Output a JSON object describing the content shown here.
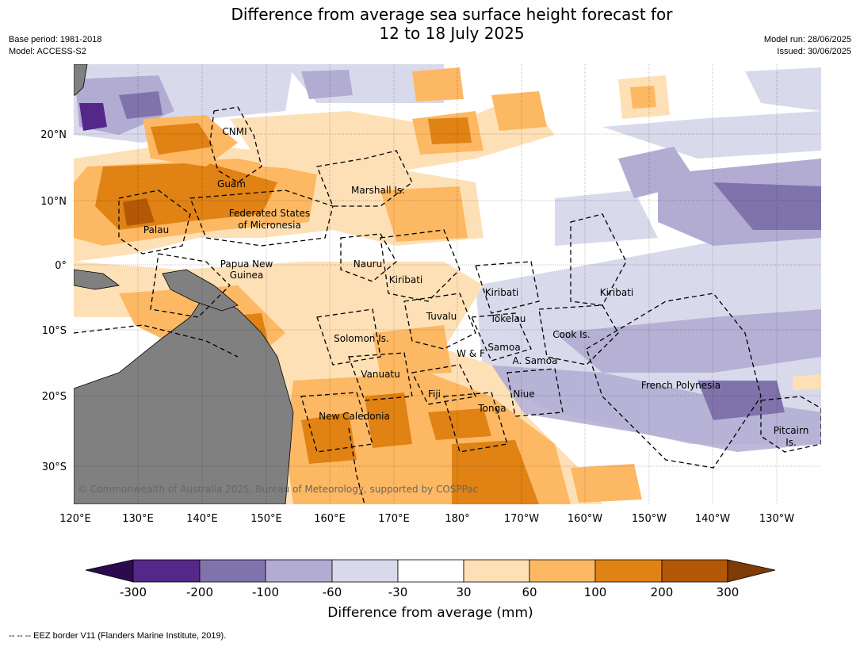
{
  "title_line1": "Difference from average sea surface height forecast for",
  "title_line2": "12 to 18 July 2025",
  "base_period": "Base period: 1981-2018",
  "model": "Model: ACCESS-S2",
  "model_run": "Model run: 28/06/2025",
  "issued": "Issued: 30/06/2025",
  "copyright": "© Commonwealth of Australia 2025, Bureau of Meteorology, supported by COSPPac",
  "lon_ticks": [
    "120°E",
    "130°E",
    "140°E",
    "150°E",
    "160°E",
    "170°E",
    "180°",
    "170°W",
    "160°W",
    "150°W",
    "140°W",
    "130°W"
  ],
  "lat_ticks": [
    "20°N",
    "10°N",
    "0°",
    "10°S",
    "20°S",
    "30°S"
  ],
  "places": [
    {
      "id": "cnmi",
      "text": "CNMI"
    },
    {
      "id": "guam",
      "text": "Guam"
    },
    {
      "id": "marshall",
      "text": "Marshall Is."
    },
    {
      "id": "fsm1",
      "text": "Federated States"
    },
    {
      "id": "fsm2",
      "text": "of Micronesia"
    },
    {
      "id": "palau",
      "text": "Palau"
    },
    {
      "id": "png1",
      "text": "Papua New"
    },
    {
      "id": "png2",
      "text": "Guinea"
    },
    {
      "id": "nauru",
      "text": "Nauru"
    },
    {
      "id": "kiribati1",
      "text": "Kiribati"
    },
    {
      "id": "kiribati2",
      "text": "Kiribati"
    },
    {
      "id": "kiribati3",
      "text": "Kiribati"
    },
    {
      "id": "tuvalu",
      "text": "Tuvalu"
    },
    {
      "id": "tokelau",
      "text": "Tokelau"
    },
    {
      "id": "cook",
      "text": "Cook Is."
    },
    {
      "id": "solomon",
      "text": "Solomon Is."
    },
    {
      "id": "wf",
      "text": "W & F"
    },
    {
      "id": "samoa",
      "text": "Samoa"
    },
    {
      "id": "asamoa",
      "text": "A. Samoa"
    },
    {
      "id": "vanuatu",
      "text": "Vanuatu"
    },
    {
      "id": "fiji",
      "text": "Fiji"
    },
    {
      "id": "niue",
      "text": "Niue"
    },
    {
      "id": "tonga",
      "text": "Tonga"
    },
    {
      "id": "frpoly",
      "text": "French Polynesia"
    },
    {
      "id": "newcal",
      "text": "New Caledonia"
    },
    {
      "id": "pitcairn1",
      "text": "Pitcairn"
    },
    {
      "id": "pitcairn2",
      "text": "Is."
    }
  ],
  "colorbar": {
    "labels": [
      "-300",
      "-200",
      "-100",
      "-60",
      "-30",
      "30",
      "60",
      "100",
      "200",
      "300"
    ],
    "colors": [
      "#2d0a4e",
      "#542788",
      "#8073ac",
      "#b2abd2",
      "#d8daeb",
      "#ffffff",
      "#fee0b6",
      "#fdb863",
      "#e08214",
      "#b35806",
      "#7f3b08"
    ],
    "title": "Difference from average (mm)"
  },
  "footer": "-- -- -- EEZ border V11 (Flanders Marine Institute, 2019)."
}
